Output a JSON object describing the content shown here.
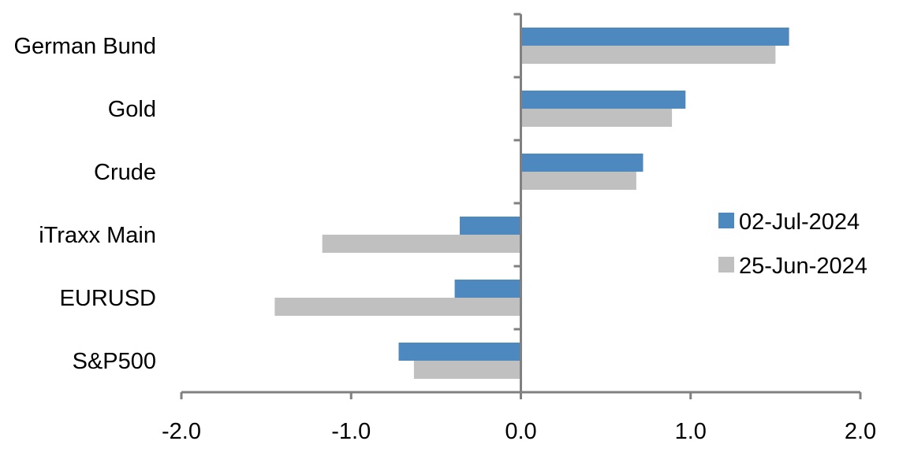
{
  "chart_data": {
    "type": "bar",
    "orientation": "horizontal",
    "categories": [
      "German Bund",
      "Gold",
      "Crude",
      "iTraxx Main",
      "EURUSD",
      "S&P500"
    ],
    "series": [
      {
        "name": "02-Jul-2024",
        "color": "#4d89be",
        "values": [
          1.58,
          0.97,
          0.72,
          -0.36,
          -0.39,
          -0.72
        ]
      },
      {
        "name": "25-Jun-2024",
        "color": "#c0c0c0",
        "values": [
          1.5,
          0.89,
          0.68,
          -1.17,
          -1.45,
          -0.63
        ]
      }
    ],
    "xlim": [
      -2.0,
      2.0
    ],
    "xticks": [
      "-2.0",
      "-1.0",
      "0.0",
      "1.0",
      "2.0"
    ],
    "title": "",
    "xlabel": "",
    "ylabel": "",
    "grid": false,
    "legend_position": "right"
  }
}
